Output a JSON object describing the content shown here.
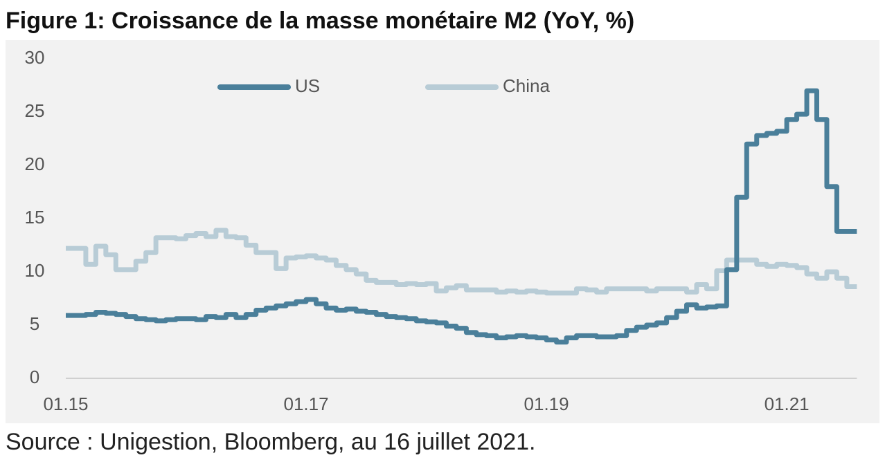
{
  "chart_data": {
    "type": "step-line",
    "title": "Figure 1: Croissance de la masse monétaire M2 (YoY, %)",
    "source": "Source : Unigestion, Bloomberg, au 16 juillet 2021.",
    "categories": [
      "01.15",
      null,
      null,
      null,
      null,
      null,
      null,
      null,
      null,
      null,
      null,
      null,
      null,
      null,
      null,
      null,
      null,
      null,
      null,
      null,
      null,
      null,
      null,
      null,
      "01.17",
      null,
      null,
      null,
      null,
      null,
      null,
      null,
      null,
      null,
      null,
      null,
      null,
      null,
      null,
      null,
      null,
      null,
      null,
      null,
      null,
      null,
      null,
      null,
      "01.19",
      null,
      null,
      null,
      null,
      null,
      null,
      null,
      null,
      null,
      null,
      null,
      null,
      null,
      null,
      null,
      null,
      null,
      null,
      null,
      null,
      null,
      null,
      null,
      "01.21",
      null,
      null,
      null,
      null,
      null,
      null
    ],
    "series": [
      {
        "name": "US",
        "color": "#4a7f9a",
        "values": [
          5.9,
          5.9,
          6.0,
          6.2,
          6.1,
          6.0,
          5.8,
          5.6,
          5.5,
          5.4,
          5.5,
          5.6,
          5.6,
          5.5,
          5.8,
          5.7,
          6.0,
          5.7,
          6.0,
          6.4,
          6.6,
          6.8,
          7.0,
          7.2,
          7.4,
          7.0,
          6.6,
          6.4,
          6.5,
          6.3,
          6.2,
          6.0,
          5.8,
          5.7,
          5.6,
          5.4,
          5.3,
          5.2,
          4.9,
          4.7,
          4.3,
          4.1,
          4.0,
          3.8,
          3.9,
          4.0,
          3.9,
          3.8,
          3.6,
          3.4,
          3.8,
          4.0,
          4.0,
          3.9,
          3.9,
          4.0,
          4.5,
          4.8,
          5.0,
          5.2,
          5.7,
          6.3,
          6.9,
          6.6,
          6.7,
          6.8,
          10.2,
          17.0,
          22.0,
          22.8,
          23.0,
          23.2,
          24.3,
          24.8,
          27.0,
          24.3,
          18.0,
          13.8,
          13.8
        ]
      },
      {
        "name": "China",
        "color": "#b8ccd6",
        "values": [
          12.2,
          12.2,
          10.7,
          12.4,
          11.6,
          10.2,
          10.2,
          11.0,
          11.8,
          13.2,
          13.2,
          13.1,
          13.4,
          13.6,
          13.3,
          13.9,
          13.3,
          13.2,
          12.5,
          11.8,
          11.8,
          10.3,
          11.3,
          11.4,
          11.5,
          11.3,
          11.1,
          10.6,
          10.2,
          9.8,
          9.2,
          9.0,
          9.0,
          8.8,
          8.9,
          8.8,
          8.9,
          8.2,
          8.5,
          8.7,
          8.3,
          8.3,
          8.3,
          8.1,
          8.2,
          8.1,
          8.2,
          8.1,
          8.0,
          8.0,
          8.0,
          8.4,
          8.3,
          8.1,
          8.4,
          8.4,
          8.4,
          8.4,
          8.2,
          8.4,
          8.4,
          8.4,
          8.1,
          8.8,
          8.4,
          10.1,
          11.1,
          11.1,
          11.1,
          10.7,
          10.5,
          10.7,
          10.6,
          10.4,
          9.8,
          9.4,
          10.0,
          9.4,
          8.6
        ]
      }
    ],
    "ylim": [
      0,
      30
    ],
    "yticks": [
      0,
      5,
      10,
      15,
      20,
      25,
      30
    ],
    "legend": "top"
  }
}
